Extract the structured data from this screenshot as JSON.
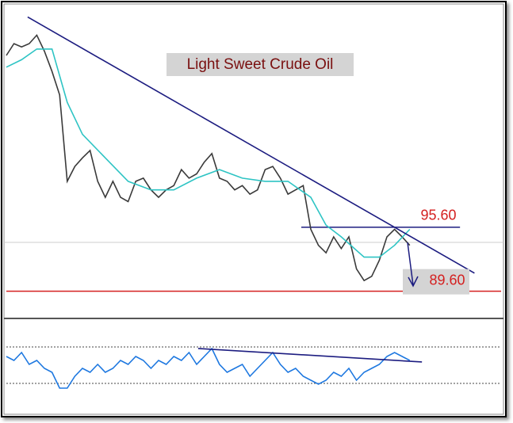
{
  "chart_data": [
    {
      "type": "line",
      "title": "Light Sweet Crude Oil",
      "xlim": [
        0,
        65
      ],
      "ylim": [
        87.2,
        116.3
      ],
      "series": [
        {
          "color": "#3a3a3a",
          "x": [
            0,
            1,
            2,
            3,
            4,
            5,
            6,
            7,
            8,
            9,
            10,
            11,
            12,
            13,
            14,
            15,
            16,
            17,
            18,
            19,
            20,
            21,
            22,
            23,
            24,
            25,
            26,
            27,
            28,
            29,
            30,
            31,
            32,
            33,
            34,
            35,
            36,
            37,
            38,
            39,
            40,
            41,
            42,
            43,
            44,
            45,
            46,
            47,
            48,
            49,
            50,
            51,
            52,
            53
          ],
          "values": [
            111.7,
            112.8,
            112.5,
            112.8,
            113.6,
            112.1,
            110.2,
            108.0,
            99.9,
            101.3,
            102.1,
            102.8,
            99.9,
            98.4,
            99.9,
            98.4,
            98.0,
            99.9,
            100.2,
            99.1,
            98.4,
            99.1,
            99.5,
            101.0,
            100.2,
            100.6,
            101.7,
            102.5,
            100.2,
            99.9,
            99.1,
            99.5,
            98.7,
            99.1,
            101.0,
            101.3,
            100.2,
            98.7,
            99.1,
            99.5,
            95.4,
            93.9,
            93.2,
            94.7,
            93.6,
            94.7,
            91.7,
            90.6,
            91.0,
            92.5,
            94.7,
            95.4,
            94.7,
            93.9
          ]
        },
        {
          "color": "#2ec4c4",
          "x": [
            0,
            2,
            4,
            6,
            8,
            10,
            13,
            16,
            19,
            22,
            25,
            28,
            31,
            34,
            37,
            40,
            42,
            44,
            47,
            49,
            51,
            53
          ],
          "values": [
            110.6,
            111.3,
            112.3,
            112.3,
            107.3,
            104.3,
            102.1,
            99.9,
            99.1,
            99.1,
            100.2,
            101.0,
            100.2,
            99.9,
            99.9,
            98.4,
            95.8,
            94.7,
            92.8,
            92.8,
            93.9,
            95.4
          ]
        }
      ],
      "trendline": {
        "color": "#1c1c80",
        "x": [
          2.8,
          61.5
        ],
        "y": [
          115.3,
          91.3
        ]
      },
      "levels": [
        {
          "value": 95.6,
          "label": "95.60",
          "color": "#1c1c80",
          "x": [
            38.75,
            59.6
          ]
        },
        {
          "value": 89.6,
          "label": "89.60",
          "color": "#d42020",
          "x": [
            0,
            65
          ]
        }
      ]
    },
    {
      "type": "line",
      "xlim": [
        0,
        65
      ],
      "ylim": [
        0,
        100
      ],
      "yticks": [
        30,
        70
      ],
      "grid": true,
      "series": [
        {
          "color": "#1e78e0",
          "x": [
            0,
            1,
            2,
            3,
            4,
            5,
            6,
            7,
            8,
            9,
            10,
            11,
            12,
            13,
            14,
            15,
            16,
            17,
            18,
            19,
            20,
            21,
            22,
            23,
            24,
            25,
            26,
            27,
            28,
            29,
            30,
            31,
            32,
            33,
            34,
            35,
            36,
            37,
            38,
            39,
            40,
            41,
            42,
            43,
            44,
            45,
            46,
            47,
            48,
            49,
            50,
            51,
            52,
            53
          ],
          "values": [
            59.6,
            55.2,
            63.9,
            50.9,
            55.2,
            46.5,
            42.2,
            24.8,
            24.8,
            37.8,
            46.5,
            42.2,
            50.9,
            42.2,
            46.5,
            55.2,
            50.9,
            59.6,
            55.2,
            46.5,
            55.2,
            50.9,
            59.6,
            55.2,
            63.9,
            50.9,
            59.6,
            68.3,
            50.9,
            42.2,
            46.5,
            50.9,
            37.8,
            46.5,
            55.2,
            63.9,
            50.9,
            42.2,
            46.5,
            37.8,
            33.5,
            29.1,
            33.5,
            42.2,
            37.8,
            46.5,
            33.5,
            42.2,
            46.5,
            50.9,
            59.6,
            63.9,
            59.6,
            55.2
          ]
        }
      ],
      "trendline": {
        "color": "#1c1c80",
        "x": [
          25.2,
          54.6
        ],
        "y": [
          68.3,
          53.5
        ]
      }
    }
  ]
}
